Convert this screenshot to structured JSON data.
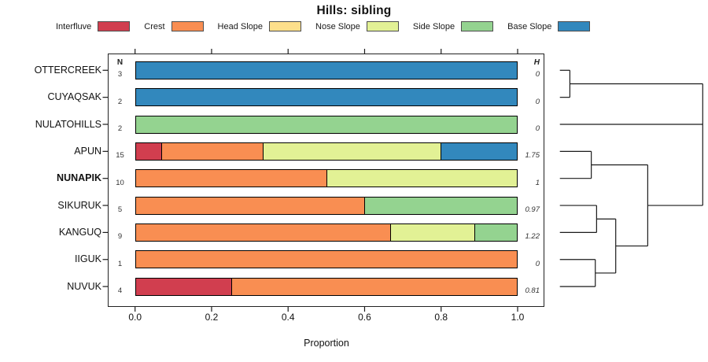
{
  "title": "Hills: sibling",
  "columns": {
    "n_header": "N",
    "h_header": "H"
  },
  "axis": {
    "label": "Proportion",
    "ticks": [
      {
        "label": "0.0",
        "value": 0.0
      },
      {
        "label": "0.2",
        "value": 0.2
      },
      {
        "label": "0.4",
        "value": 0.4
      },
      {
        "label": "0.6",
        "value": 0.6
      },
      {
        "label": "0.8",
        "value": 0.8
      },
      {
        "label": "1.0",
        "value": 1.0
      }
    ],
    "range": [
      0.0,
      1.0
    ]
  },
  "legend": {
    "items": [
      {
        "label": "Interfluve",
        "color": "#D13E4F"
      },
      {
        "label": "Crest",
        "color": "#F98E52"
      },
      {
        "label": "Head Slope",
        "color": "#FDDF8B"
      },
      {
        "label": "Nose Slope",
        "color": "#E2F195"
      },
      {
        "label": "Side Slope",
        "color": "#94D390"
      },
      {
        "label": "Base Slope",
        "color": "#3288BD"
      }
    ]
  },
  "chart_data": {
    "type": "bar",
    "subtype": "horizontal-stacked-proportion",
    "title": "Hills: sibling",
    "xlabel": "Proportion",
    "xlim": [
      0.0,
      1.0
    ],
    "grid": false,
    "classes": [
      "Interfluve",
      "Crest",
      "Head Slope",
      "Nose Slope",
      "Side Slope",
      "Base Slope"
    ],
    "rows": [
      {
        "label": "OTTERCREEK",
        "bold": false,
        "n": 3,
        "h": "0",
        "segments": [
          {
            "class": "Base Slope",
            "count": 3
          }
        ]
      },
      {
        "label": "CUYAQSAK",
        "bold": false,
        "n": 2,
        "h": "0",
        "segments": [
          {
            "class": "Base Slope",
            "count": 2
          }
        ]
      },
      {
        "label": "NULATOHILLS",
        "bold": false,
        "n": 2,
        "h": "0",
        "segments": [
          {
            "class": "Side Slope",
            "count": 2
          }
        ]
      },
      {
        "label": "APUN",
        "bold": false,
        "n": 15,
        "h": "1.75",
        "segments": [
          {
            "class": "Interfluve",
            "count": 1
          },
          {
            "class": "Crest",
            "count": 4
          },
          {
            "class": "Nose Slope",
            "count": 7
          },
          {
            "class": "Base Slope",
            "count": 3
          }
        ]
      },
      {
        "label": "NUNAPIK",
        "bold": true,
        "n": 10,
        "h": "1",
        "segments": [
          {
            "class": "Crest",
            "count": 5
          },
          {
            "class": "Nose Slope",
            "count": 5
          }
        ]
      },
      {
        "label": "SIKURUK",
        "bold": false,
        "n": 5,
        "h": "0.97",
        "segments": [
          {
            "class": "Crest",
            "count": 3
          },
          {
            "class": "Side Slope",
            "count": 2
          }
        ]
      },
      {
        "label": "KANGUQ",
        "bold": false,
        "n": 9,
        "h": "1.22",
        "segments": [
          {
            "class": "Crest",
            "count": 6
          },
          {
            "class": "Nose Slope",
            "count": 2
          },
          {
            "class": "Side Slope",
            "count": 1
          }
        ]
      },
      {
        "label": "IIGUK",
        "bold": false,
        "n": 1,
        "h": "0",
        "segments": [
          {
            "class": "Crest",
            "count": 1
          }
        ]
      },
      {
        "label": "NUVUK",
        "bold": false,
        "n": 4,
        "h": "0.81",
        "segments": [
          {
            "class": "Interfluve",
            "count": 1
          },
          {
            "class": "Crest",
            "count": 3
          }
        ]
      }
    ],
    "dendrogram": {
      "orientation": "right",
      "merges": [
        {
          "id": "m1",
          "children": [
            {
              "leaf": 0
            },
            {
              "leaf": 1
            }
          ],
          "height": 0.07
        },
        {
          "id": "mD",
          "children": [
            {
              "leaf": 3
            },
            {
              "leaf": 4
            }
          ],
          "height": 0.22
        },
        {
          "id": "mG",
          "children": [
            {
              "leaf": 7
            },
            {
              "leaf": 8
            }
          ],
          "height": 0.248
        },
        {
          "id": "mE",
          "children": [
            {
              "leaf": 5
            },
            {
              "leaf": 6
            }
          ],
          "height": 0.257
        },
        {
          "id": "mF",
          "children": [
            {
              "merge": "mE"
            },
            {
              "merge": "mG"
            }
          ],
          "height": 0.391
        },
        {
          "id": "mC",
          "children": [
            {
              "merge": "mD"
            },
            {
              "merge": "mF"
            }
          ],
          "height": 0.615
        },
        {
          "id": "root",
          "children": [
            {
              "merge": "m1"
            },
            {
              "leaf": 2
            },
            {
              "merge": "mC"
            }
          ],
          "height": 1.0
        }
      ]
    }
  }
}
